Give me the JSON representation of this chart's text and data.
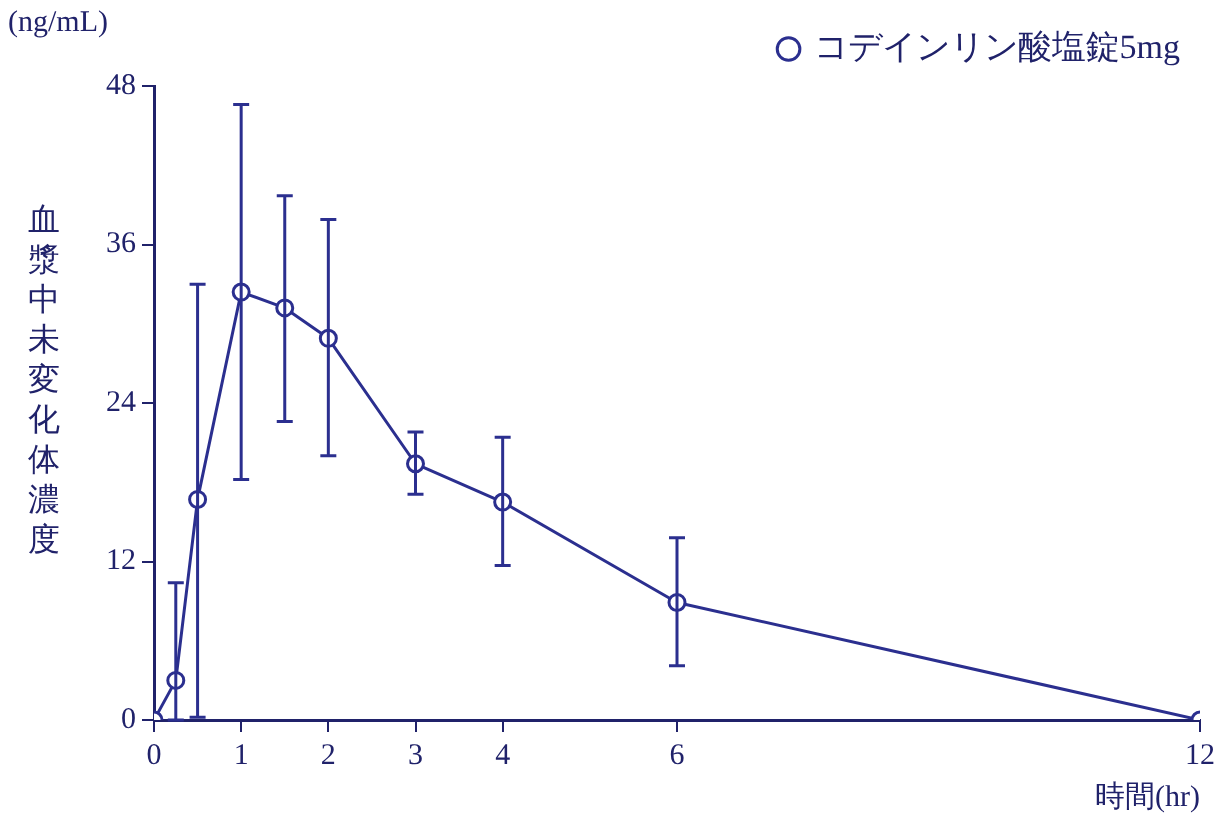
{
  "chart_data": {
    "type": "line",
    "xlabel": "時間(hr)",
    "ylabel": "血漿中未変化体濃度",
    "annotations": [
      "(ng/mL)"
    ],
    "x": [
      0,
      0.25,
      0.5,
      1,
      1.5,
      2,
      3,
      4,
      6,
      12
    ],
    "series": [
      {
        "name": "コデインリン酸塩錠5mg",
        "color": "#2b2f8f",
        "values": [
          0,
          3.0,
          16.7,
          32.4,
          31.2,
          28.9,
          19.4,
          16.5,
          8.9,
          0
        ],
        "errors": [
          null,
          [
            0,
            10.4
          ],
          [
            0.2,
            33.0
          ],
          [
            18.2,
            46.6
          ],
          [
            22.6,
            39.7
          ],
          [
            20.0,
            37.9
          ],
          [
            17.1,
            21.8
          ],
          [
            11.7,
            21.4
          ],
          [
            4.1,
            13.8
          ],
          null
        ]
      }
    ],
    "xlim": [
      0,
      12
    ],
    "xticks": [
      0,
      1,
      2,
      3,
      4,
      6,
      12
    ],
    "ylim": [
      0,
      48
    ],
    "yticks": [
      0,
      12,
      24,
      36,
      48
    ],
    "grid": false,
    "legend": "top right",
    "marker": "circle",
    "line_style": "solid"
  }
}
